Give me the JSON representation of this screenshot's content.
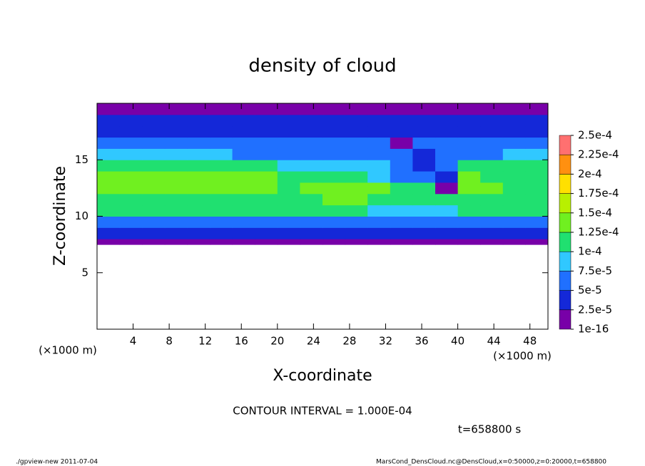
{
  "chart_data": {
    "type": "heatmap",
    "title": "density of cloud",
    "xlabel": "X-coordinate",
    "ylabel": "Z-coordinate",
    "xunit": "(×1000 m)",
    "yunit": "(×1000 m)",
    "annotation": "CONTOUR INTERVAL = 1.000E-04",
    "time_label": "t=658800 s",
    "footer_left": "./gpview-new  2011-07-04",
    "footer_right": "MarsCond_DensCloud.nc@DensCloud,x=0:50000,z=0:20000,t=658800",
    "xlim": [
      0,
      50
    ],
    "ylim": [
      0,
      20
    ],
    "xticks": [
      4,
      8,
      12,
      16,
      20,
      24,
      28,
      32,
      36,
      40,
      44,
      48
    ],
    "yticks": [
      5,
      10,
      15
    ],
    "x_edges": [
      0,
      2.5,
      5,
      7.5,
      10,
      12.5,
      15,
      17.5,
      20,
      22.5,
      25,
      27.5,
      30,
      32.5,
      35,
      37.5,
      40,
      42.5,
      45,
      47.5,
      50
    ],
    "y_edges": [
      7.5,
      8,
      9,
      10,
      11,
      12,
      13,
      14,
      15,
      16,
      17,
      18,
      19,
      20
    ],
    "values": [
      [
        1.5e-05,
        1.5e-05,
        1.5e-05,
        1.5e-05,
        1.5e-05,
        1.5e-05,
        1.5e-05,
        1.5e-05,
        1.5e-05,
        1.5e-05,
        1.5e-05,
        1.5e-05,
        1.5e-05,
        1.5e-05,
        1.5e-05,
        1.5e-05,
        1.5e-05,
        1.5e-05,
        1.5e-05,
        1.5e-05
      ],
      [
        4e-05,
        4e-05,
        4e-05,
        4e-05,
        4e-05,
        4e-05,
        4e-05,
        4e-05,
        4e-05,
        4e-05,
        4e-05,
        4e-05,
        4e-05,
        4e-05,
        4e-05,
        4e-05,
        4e-05,
        4e-05,
        4e-05,
        4e-05
      ],
      [
        7e-05,
        7e-05,
        7e-05,
        7e-05,
        7e-05,
        7e-05,
        7e-05,
        7e-05,
        7e-05,
        7e-05,
        7e-05,
        7e-05,
        7e-05,
        7e-05,
        7e-05,
        7e-05,
        7e-05,
        7e-05,
        7e-05,
        7e-05
      ],
      [
        0.000105,
        0.000105,
        0.000105,
        0.000105,
        0.000105,
        0.000105,
        0.000105,
        0.000105,
        0.000105,
        0.000105,
        0.000105,
        0.000105,
        9e-05,
        9e-05,
        9e-05,
        9e-05,
        0.000105,
        0.000105,
        0.000105,
        0.000105
      ],
      [
        0.00012,
        0.00012,
        0.00012,
        0.00012,
        0.00012,
        0.00012,
        0.00012,
        0.00012,
        0.000115,
        0.000115,
        0.000125,
        0.000125,
        0.000115,
        0.000115,
        0.00011,
        0.00011,
        0.00012,
        0.00012,
        0.00012,
        0.00012
      ],
      [
        0.000135,
        0.000135,
        0.000135,
        0.000135,
        0.000135,
        0.000135,
        0.000135,
        0.000135,
        0.00012,
        0.00013,
        0.00013,
        0.00013,
        0.00013,
        0.00012,
        0.00012,
        1.5e-05,
        0.000135,
        0.000135,
        0.00012,
        0.00012
      ],
      [
        0.00013,
        0.00013,
        0.00013,
        0.00013,
        0.00013,
        0.00013,
        0.00013,
        0.00013,
        0.000105,
        0.000105,
        0.00011,
        0.00011,
        9e-05,
        6e-05,
        5e-05,
        3e-05,
        0.00013,
        0.000115,
        0.000115,
        0.000115
      ],
      [
        0.00011,
        0.00011,
        0.00011,
        0.00011,
        0.00011,
        0.00011,
        0.0001,
        0.0001,
        8e-05,
        8e-05,
        8e-05,
        8e-05,
        8e-05,
        6e-05,
        4e-05,
        5e-05,
        0.000105,
        0.000105,
        0.000105,
        0.000105
      ],
      [
        8e-05,
        8e-05,
        8e-05,
        8e-05,
        8e-05,
        8e-05,
        7e-05,
        7e-05,
        7e-05,
        7e-05,
        7e-05,
        7e-05,
        7e-05,
        7e-05,
        4e-05,
        5e-05,
        7e-05,
        7e-05,
        9e-05,
        9e-05
      ],
      [
        6e-05,
        6e-05,
        6e-05,
        6e-05,
        6e-05,
        6e-05,
        6e-05,
        6e-05,
        6e-05,
        6e-05,
        6e-05,
        6e-05,
        6e-05,
        1.5e-05,
        5e-05,
        6e-05,
        6e-05,
        6e-05,
        7e-05,
        7e-05
      ],
      [
        4e-05,
        4e-05,
        4e-05,
        4e-05,
        4e-05,
        4e-05,
        4e-05,
        4e-05,
        4e-05,
        4e-05,
        4e-05,
        4e-05,
        4e-05,
        4e-05,
        4e-05,
        4e-05,
        4e-05,
        4e-05,
        4e-05,
        4e-05
      ],
      [
        3e-05,
        3e-05,
        3e-05,
        3e-05,
        3e-05,
        3e-05,
        3e-05,
        3e-05,
        3e-05,
        3e-05,
        3e-05,
        3e-05,
        3e-05,
        3e-05,
        3e-05,
        3e-05,
        3e-05,
        3e-05,
        3e-05,
        3e-05
      ],
      [
        1.5e-05,
        1.5e-05,
        1.5e-05,
        1.5e-05,
        1.5e-05,
        1.5e-05,
        1.5e-05,
        1.5e-05,
        1.5e-05,
        1.5e-05,
        1.5e-05,
        1.5e-05,
        1.5e-05,
        1.5e-05,
        1.5e-05,
        1.5e-05,
        1.5e-05,
        1.5e-05,
        1.5e-05,
        1.5e-05
      ]
    ],
    "levels": [
      {
        "value": 1e-16,
        "label": "1e-16"
      },
      {
        "value": 2.5e-05,
        "label": "2.5e-5"
      },
      {
        "value": 5e-05,
        "label": "5e-5"
      },
      {
        "value": 7.5e-05,
        "label": "7.5e-5"
      },
      {
        "value": 0.0001,
        "label": "1e-4"
      },
      {
        "value": 0.000125,
        "label": "1.25e-4"
      },
      {
        "value": 0.00015,
        "label": "1.5e-4"
      },
      {
        "value": 0.000175,
        "label": "1.75e-4"
      },
      {
        "value": 0.0002,
        "label": "2e-4"
      },
      {
        "value": 0.000225,
        "label": "2.25e-4"
      },
      {
        "value": 0.00025,
        "label": "2.5e-4"
      }
    ],
    "colors": [
      "#7800a8",
      "#1428d8",
      "#2070ff",
      "#30c8ff",
      "#20e070",
      "#70f020",
      "#b8f000",
      "#ffe000",
      "#ff9010",
      "#ff7070"
    ]
  }
}
